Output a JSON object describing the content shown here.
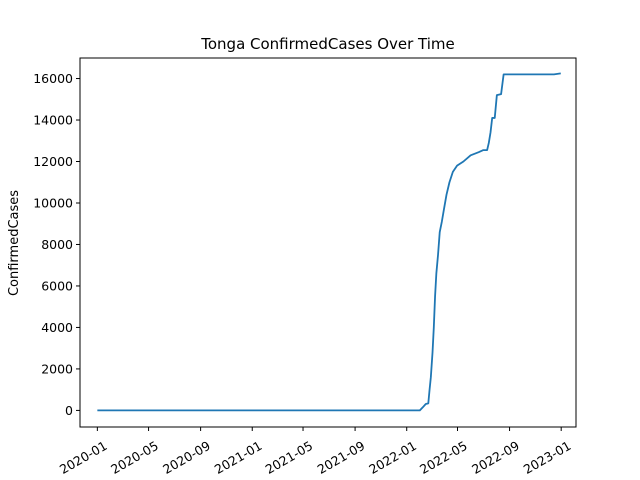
{
  "chart_data": {
    "type": "line",
    "title": "Tonga  ConfirmedCases Over Time",
    "xlabel": "",
    "ylabel": "ConfirmedCases",
    "grid": false,
    "legend": "none",
    "xlim": [
      "2019-11-21",
      "2023-02-05"
    ],
    "ylim": [
      -800,
      16990
    ],
    "x_ticks": [
      "2020-01",
      "2020-05",
      "2020-09",
      "2021-01",
      "2021-05",
      "2021-09",
      "2022-01",
      "2022-05",
      "2022-09",
      "2023-01"
    ],
    "y_ticks": [
      0,
      2000,
      4000,
      6000,
      8000,
      10000,
      12000,
      14000,
      16000
    ],
    "series": [
      {
        "color": "#1f77b4",
        "points": [
          [
            "2020-01-01",
            0
          ],
          [
            "2022-02-01",
            0
          ],
          [
            "2022-02-08",
            150
          ],
          [
            "2022-02-15",
            310
          ],
          [
            "2022-02-21",
            340
          ],
          [
            "2022-02-24",
            1000
          ],
          [
            "2022-02-27",
            1600
          ],
          [
            "2022-03-03",
            2800
          ],
          [
            "2022-03-06",
            4000
          ],
          [
            "2022-03-09",
            5500
          ],
          [
            "2022-03-12",
            6600
          ],
          [
            "2022-03-16",
            7500
          ],
          [
            "2022-03-20",
            8600
          ],
          [
            "2022-03-25",
            9100
          ],
          [
            "2022-03-30",
            9700
          ],
          [
            "2022-04-05",
            10400
          ],
          [
            "2022-04-12",
            11000
          ],
          [
            "2022-04-20",
            11500
          ],
          [
            "2022-04-30",
            11800
          ],
          [
            "2022-05-15",
            12000
          ],
          [
            "2022-06-01",
            12300
          ],
          [
            "2022-06-20",
            12450
          ],
          [
            "2022-07-01",
            12550
          ],
          [
            "2022-07-10",
            12550
          ],
          [
            "2022-07-14",
            12900
          ],
          [
            "2022-07-18",
            13400
          ],
          [
            "2022-07-22",
            14100
          ],
          [
            "2022-07-28",
            14100
          ],
          [
            "2022-08-02",
            15200
          ],
          [
            "2022-08-12",
            15250
          ],
          [
            "2022-08-18",
            16200
          ],
          [
            "2022-12-15",
            16200
          ],
          [
            "2022-12-31",
            16250
          ]
        ]
      }
    ]
  }
}
